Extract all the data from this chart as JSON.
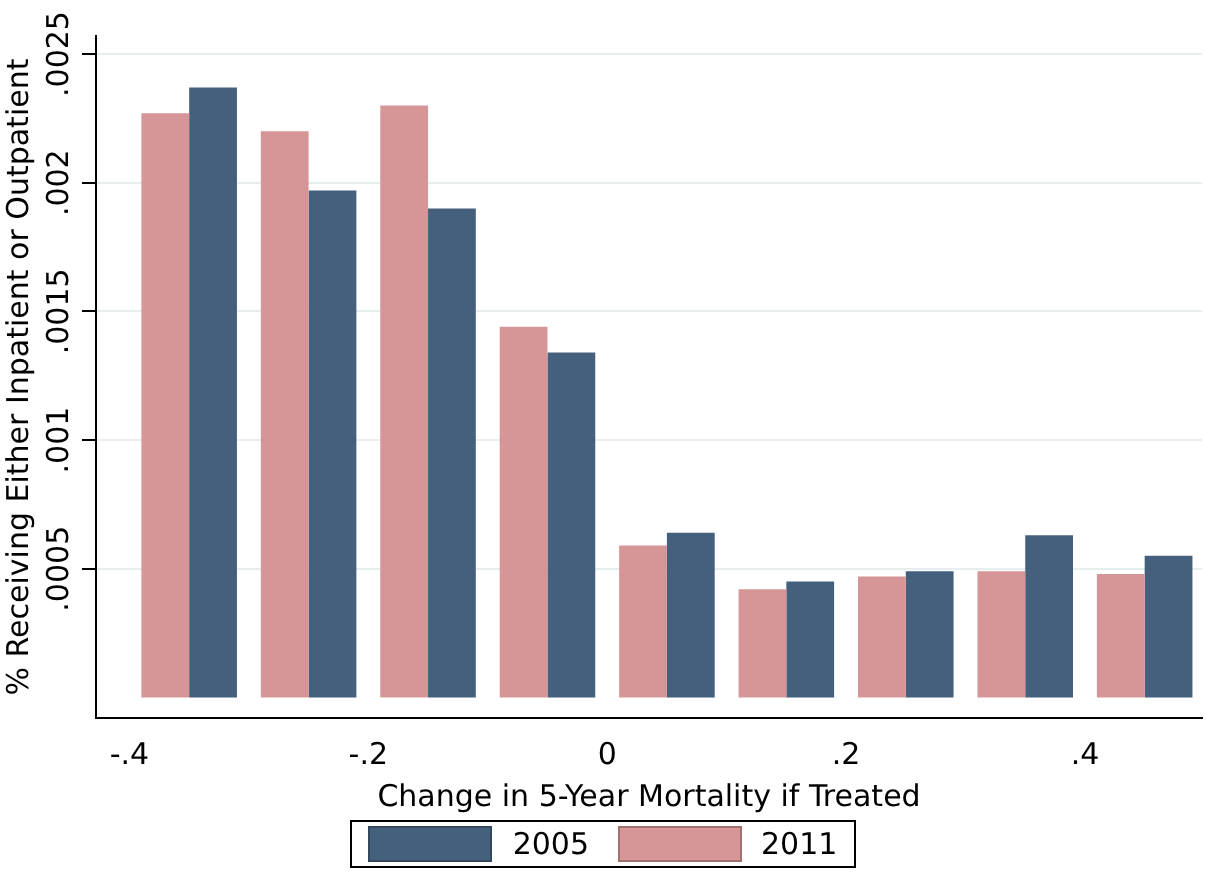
{
  "chart_data": {
    "type": "bar",
    "xlabel": "Change in 5-Year Mortality if Treated",
    "ylabel": "% Receiving Either Inpatient or Outpatient",
    "x": [
      -0.35,
      -0.25,
      -0.15,
      -0.05,
      0.05,
      0.15,
      0.25,
      0.35,
      0.45
    ],
    "series": [
      {
        "name": "2011",
        "color": "#d69596",
        "values": [
          0.00227,
          0.0022,
          0.0023,
          0.00144,
          0.00059,
          0.00042,
          0.00047,
          0.00049,
          0.00048
        ]
      },
      {
        "name": "2005",
        "color": "#44607c",
        "values": [
          0.00237,
          0.00197,
          0.0019,
          0.00134,
          0.00064,
          0.00045,
          0.00049,
          0.00063,
          0.00055
        ]
      }
    ],
    "xlim": [
      -0.428,
      0.498
    ],
    "xticks": [
      {
        "value": -0.4,
        "label": "-.4"
      },
      {
        "value": -0.2,
        "label": "-.2"
      },
      0,
      {
        "value": 0.2,
        "label": ".2"
      },
      {
        "value": 0.4,
        "label": ".4"
      }
    ],
    "ylim": [
      -8e-05,
      0.00257
    ],
    "yticks": [
      {
        "value": 0.0005,
        "label": ".0005"
      },
      {
        "value": 0.001,
        "label": ".001"
      },
      {
        "value": 0.0015,
        "label": ".0015"
      },
      {
        "value": 0.002,
        "label": ".002"
      },
      {
        "value": 0.0025,
        "label": ".0025"
      }
    ],
    "grid": "y",
    "legend": "bottom"
  }
}
